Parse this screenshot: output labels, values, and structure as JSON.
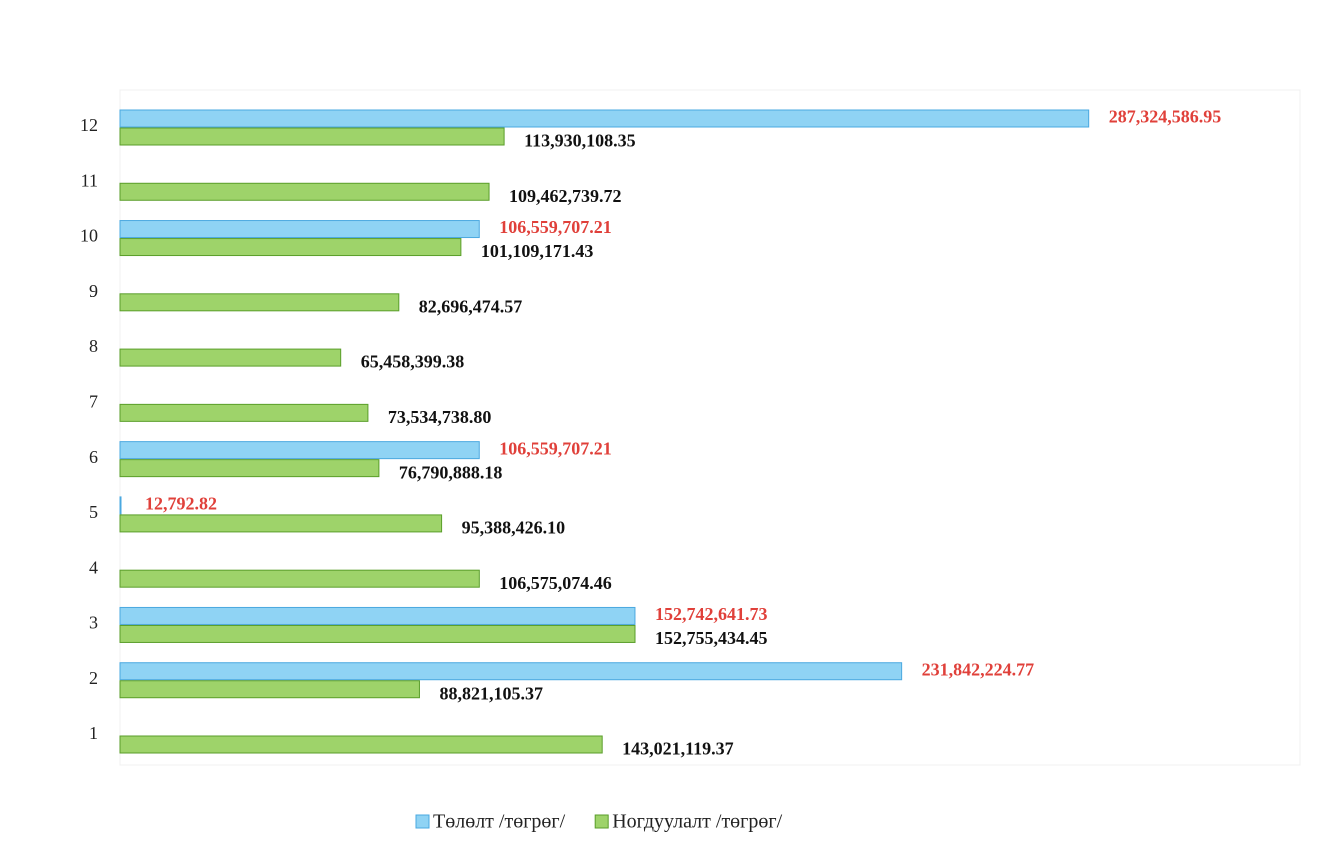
{
  "chart_data": {
    "type": "barh",
    "categories": [
      "1",
      "2",
      "3",
      "4",
      "5",
      "6",
      "7",
      "8",
      "9",
      "10",
      "11",
      "12"
    ],
    "series": [
      {
        "name": "Төлөлт /төгрөг/",
        "color": "#8fd3f4",
        "edge": "#4aa8e0",
        "label_color": "#e0403a",
        "values": [
          null,
          231842224.77,
          152742641.73,
          null,
          12792.82,
          106559707.21,
          null,
          null,
          null,
          106559707.21,
          null,
          287324586.95
        ],
        "value_labels": [
          null,
          "231,842,224.77",
          "152,742,641.73",
          null,
          "12,792.82",
          "106,559,707.21",
          null,
          null,
          null,
          "106,559,707.21",
          null,
          "287,324,586.95"
        ]
      },
      {
        "name": "Ногдуулалт /төгрөг/",
        "color": "#9ed36a",
        "edge": "#5a9e2a",
        "label_color": "#111111",
        "values": [
          143021119.37,
          88821105.37,
          152755434.45,
          106575074.46,
          95388426.1,
          76790888.18,
          73534738.8,
          65458399.38,
          82696474.57,
          101109171.43,
          109462739.72,
          113930108.35
        ],
        "value_labels": [
          "143,021,119.37",
          "88,821,105.37",
          "152,755,434.45",
          "106,575,074.46",
          "95,388,426.10",
          "76,790,888.18",
          "73,534,738.80",
          "65,458,399.38",
          "82,696,474.57",
          "101,109,171.43",
          "109,462,739.72",
          "113,930,108.35"
        ]
      }
    ],
    "xlim": [
      0,
      350000000
    ]
  }
}
